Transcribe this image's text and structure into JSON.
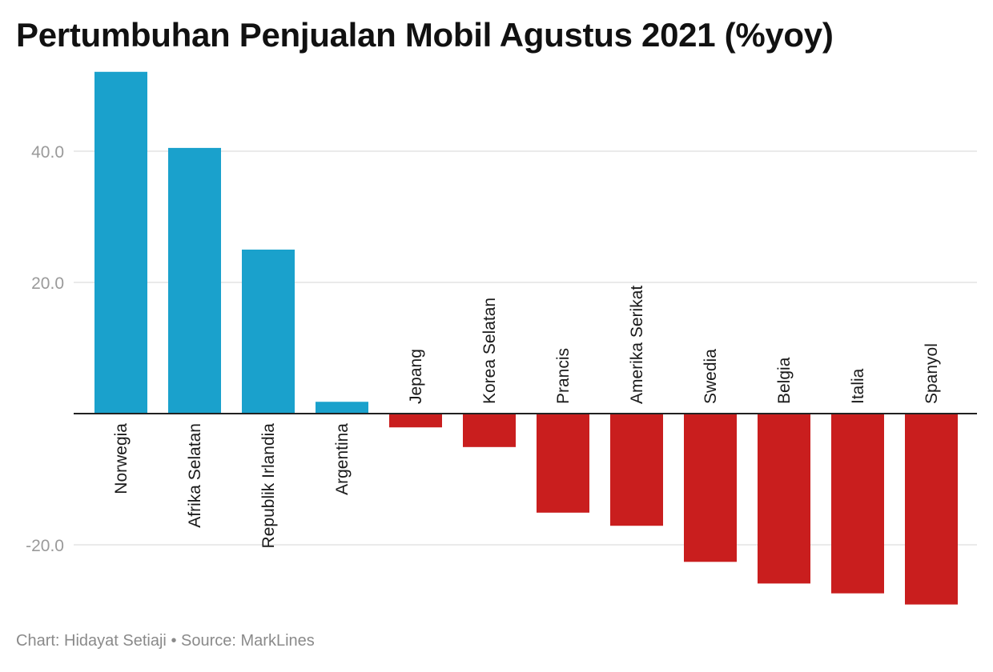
{
  "title": "Pertumbuhan Penjualan Mobil Agustus 2021 (%yoy)",
  "footer": {
    "chart_credit": "Chart: Hidayat Setiaji",
    "separator": "•",
    "source": "Source: MarkLines"
  },
  "colors": {
    "positive": "#1aa1cc",
    "negative": "#c91e1e",
    "grid": "#e4e4e4",
    "baseline": "#222222"
  },
  "chart_data": {
    "type": "bar",
    "title": "Pertumbuhan Penjualan Mobil Agustus 2021 (%yoy)",
    "xlabel": "",
    "ylabel": "",
    "ylim": [
      -32,
      52
    ],
    "yticks": [
      40,
      20,
      -20
    ],
    "ytick_labels": [
      "40.0",
      "20.0",
      "-20.0"
    ],
    "grid": true,
    "legend": "none",
    "categories": [
      "Norwegia",
      "Afrika Selatan",
      "Republik Irlandia",
      "Argentina",
      "Jepang",
      "Korea Selatan",
      "Prancis",
      "Amerika Serikat",
      "Swedia",
      "Belgia",
      "Italia",
      "Spanyol"
    ],
    "values": [
      52.1,
      40.5,
      25.0,
      1.8,
      -2.1,
      -5.1,
      -15.1,
      -17.1,
      -22.6,
      -25.9,
      -27.4,
      -29.1
    ]
  }
}
